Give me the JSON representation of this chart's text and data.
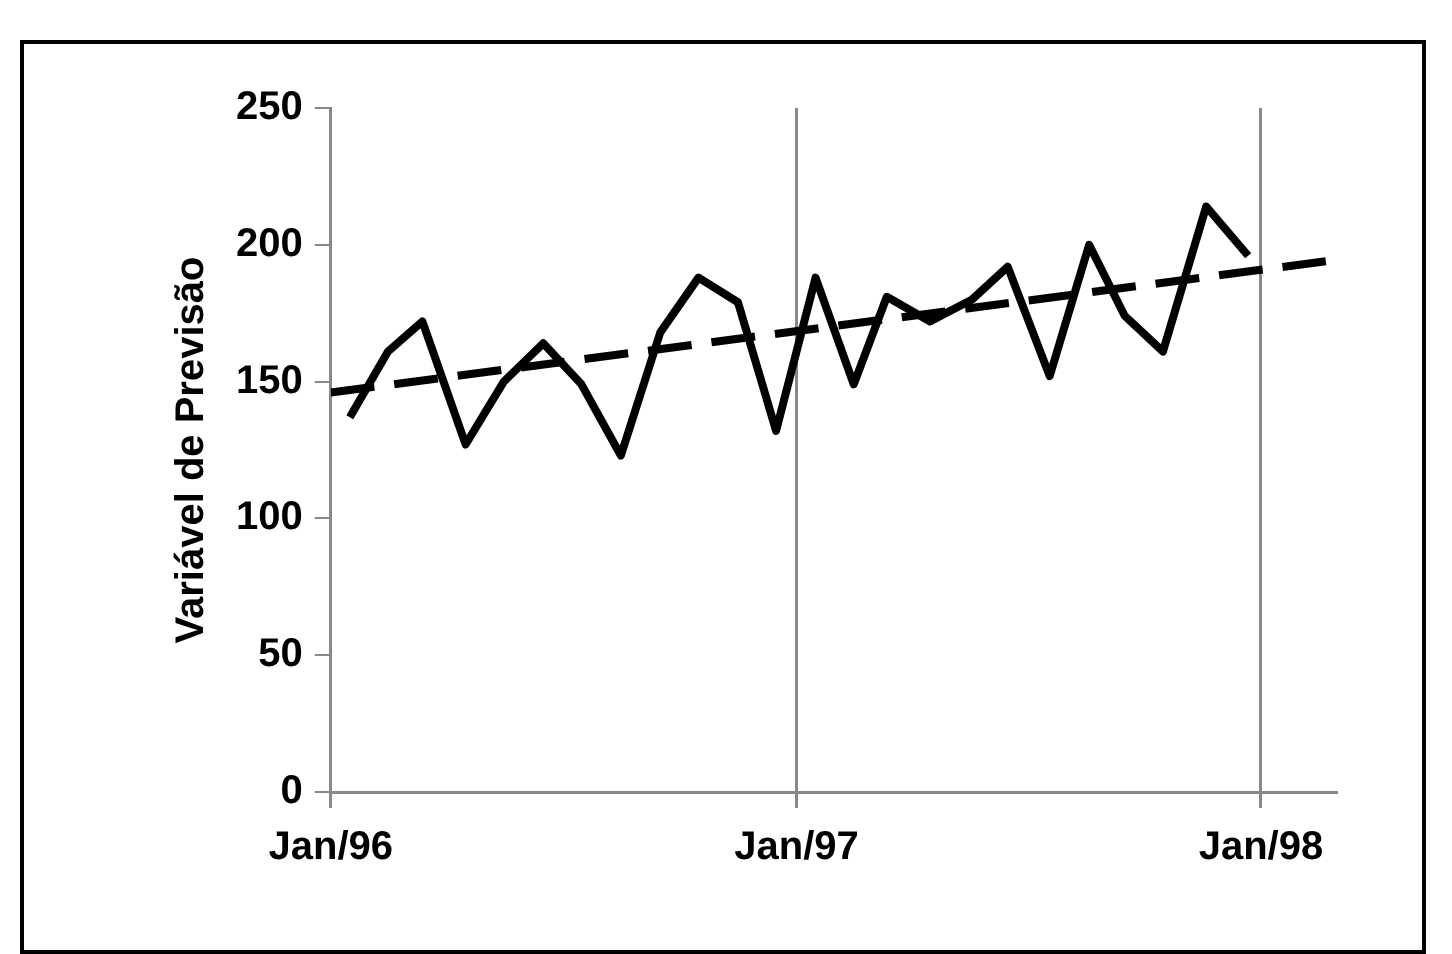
{
  "chart_data": {
    "type": "line",
    "ylabel": "Variável de Previsão",
    "xlim": [
      "1996-01",
      "1998-03"
    ],
    "xticks": [
      {
        "value": "1996-01",
        "label": "Jan/96"
      },
      {
        "value": "1997-01",
        "label": "Jan/97"
      },
      {
        "value": "1998-01",
        "label": "Jan/98"
      }
    ],
    "ylim": [
      0,
      250
    ],
    "yticks": [
      0,
      50,
      100,
      150,
      200,
      250
    ],
    "grid": "x",
    "legend": false,
    "marker": "none",
    "series": [
      {
        "color": "#000000",
        "line_style": "solid",
        "x": [
          "1996-01-16",
          "1996-02-15",
          "1996-03-13",
          "1996-04-16",
          "1996-05-16",
          "1996-06-16",
          "1996-07-16",
          "1996-08-16",
          "1996-09-16",
          "1996-10-16",
          "1996-11-16",
          "1996-12-16",
          "1997-01-16",
          "1997-02-15",
          "1997-03-13",
          "1997-04-16",
          "1997-05-19",
          "1997-06-16",
          "1997-07-19",
          "1997-08-19",
          "1997-09-16",
          "1997-10-16",
          "1997-11-19",
          "1997-12-22"
        ],
        "values": [
          137,
          161,
          172,
          127,
          150,
          164,
          149,
          123,
          168,
          188,
          179,
          132,
          188,
          149,
          181,
          172,
          180,
          192,
          152,
          200,
          174,
          161,
          214,
          196
        ]
      },
      {
        "color": "#000000",
        "line_style": "dashed",
        "x": [
          "1996-01",
          "1998-02-21"
        ],
        "values": [
          146,
          194
        ]
      }
    ]
  }
}
